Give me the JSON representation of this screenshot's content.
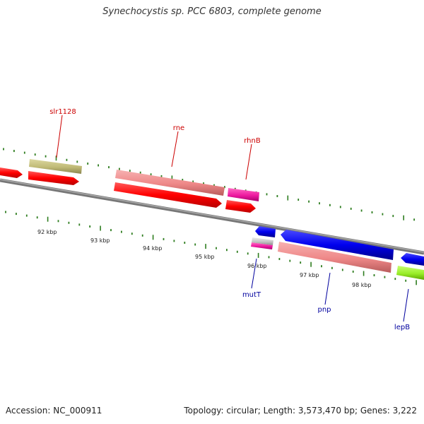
{
  "title": "Synechocystis sp. PCC 6803, complete genome",
  "footer": {
    "accession": "Accession: NC_000911",
    "summary": "Topology: circular; Length: 3,573,470 bp; Genes: 3,222"
  },
  "colors": {
    "backbone": "#8a8a8a",
    "tick": "#2e7d1f",
    "label_forward": "#cc0000",
    "label_reverse": "#00009e"
  },
  "scale_ticks": [
    "92 kbp",
    "93 kbp",
    "94 kbp",
    "95 kbp",
    "96 kbp",
    "97 kbp",
    "98 kbp"
  ],
  "gene_labels": [
    {
      "name": "slr1128",
      "strand": "forward"
    },
    {
      "name": "rne",
      "strand": "forward"
    },
    {
      "name": "rhnB",
      "strand": "forward"
    },
    {
      "name": "mutT",
      "strand": "reverse"
    },
    {
      "name": "pnp",
      "strand": "reverse"
    },
    {
      "name": "lepB",
      "strand": "reverse"
    }
  ]
}
